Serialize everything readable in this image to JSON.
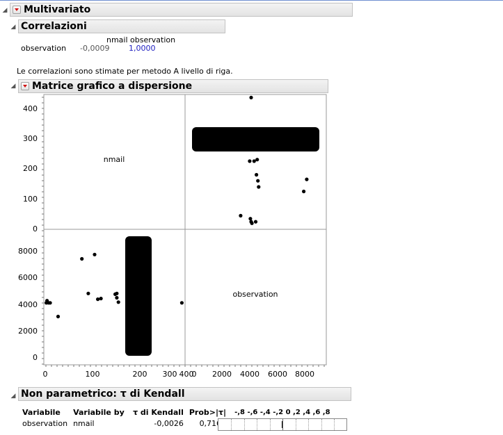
{
  "multivariate": {
    "title": "Multivariato"
  },
  "correlations": {
    "title": "Correlazioni",
    "col_headers": "nmail observation",
    "row_label": "observation",
    "row_values": [
      "-0,0009",
      "1,0000"
    ],
    "note": "Le correlazioni sono stimate per metodo A livello di riga."
  },
  "scatter_matrix": {
    "title": "Matrice grafico a dispersione",
    "diag_labels": [
      "nmail",
      "observation"
    ],
    "nmail_ticks": [
      "0",
      "100",
      "200",
      "300",
      "400"
    ],
    "observation_ticks": [
      "0",
      "2000",
      "4000",
      "6000",
      "8000"
    ]
  },
  "chart_data": [
    {
      "type": "scatter",
      "title": "",
      "xlabel": "observation",
      "ylabel": "nmail",
      "xlim": [
        -200,
        9200
      ],
      "ylim": [
        -5,
        440
      ],
      "series": [
        {
          "x": [
            4200,
            4100,
            3500,
            4150,
            4250,
            4500,
            4550,
            4650,
            4700,
            7700,
            7900,
            4600,
            4200,
            4400
          ],
          "y": [
            430,
            220,
            40,
            30,
            15,
            20,
            175,
            155,
            135,
            120,
            160,
            225,
            20,
            220
          ]
        }
      ],
      "dense_band": {
        "x_range": [
          0,
          9000
        ],
        "y_range": [
          270,
          330
        ]
      }
    },
    {
      "type": "scatter",
      "title": "",
      "xlabel": "nmail",
      "ylabel": "observation",
      "xlim": [
        -5,
        440
      ],
      "ylim": [
        -200,
        9200
      ],
      "series": [
        {
          "x": [
            5,
            10,
            3,
            15,
            40,
            115,
            135,
            155,
            165,
            175,
            225,
            225,
            430,
            230,
            220
          ],
          "y": [
            4250,
            4100,
            4100,
            4100,
            3150,
            7150,
            4750,
            7450,
            4350,
            4400,
            4750,
            4450,
            4100,
            4150,
            4700
          ]
        }
      ],
      "dense_band": {
        "x_range": [
          270,
          330
        ],
        "y_range": [
          0,
          9000
        ]
      }
    }
  ],
  "kendall": {
    "title": "Non parametrico: τ di Kendall",
    "headers": [
      "Variabile",
      "Variabile by",
      "τ di Kendall",
      "Prob>|τ|",
      "-,8 -,6 -,4 -,2  0  ,2  ,4  ,6  ,8"
    ],
    "rows": [
      {
        "var": "observation",
        "by": "nmail",
        "tau": "-0,0026",
        "prob": "0,7164",
        "bar_value": -0.0026
      }
    ]
  },
  "colors": {
    "value_blue": "#2020c0",
    "point": "#000000",
    "redtri": "#d01010"
  }
}
